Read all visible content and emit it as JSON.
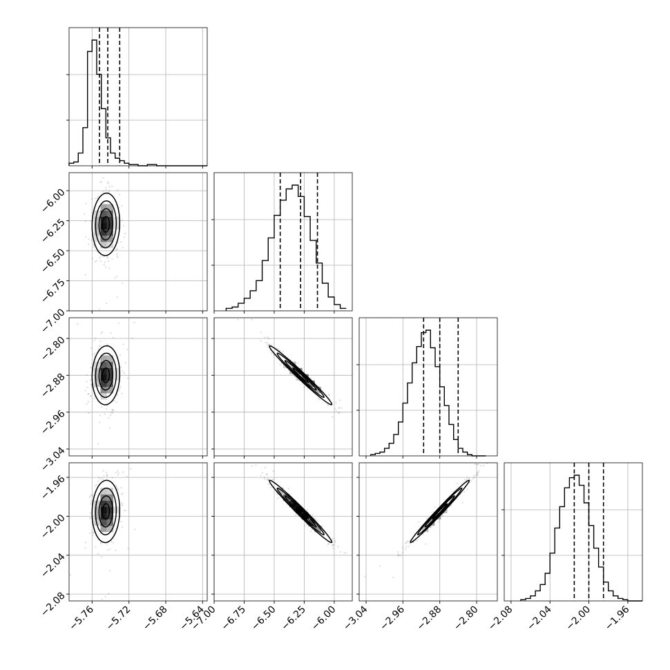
{
  "chart_data": {
    "type": "corner",
    "grid": true,
    "parameters": [
      {
        "range": [
          -5.785,
          -5.635
        ],
        "ticks": [
          -5.76,
          -5.72,
          -5.68,
          -5.64
        ],
        "tick_labels": [
          "−5.76",
          "−5.72",
          "−5.68",
          "−5.64"
        ],
        "quantiles": [
          -5.752,
          -5.743,
          -5.73
        ],
        "histogram": {
          "bin_start": -5.785,
          "bin_width": 0.005,
          "counts": [
            2,
            3,
            10,
            30,
            90,
            99,
            72,
            45,
            22,
            10,
            6,
            4,
            2,
            1,
            1,
            0,
            0,
            1,
            1,
            0,
            0,
            0,
            0,
            0,
            0,
            0,
            0,
            0,
            0,
            0
          ]
        },
        "hist_y_ticks": [
          0.33,
          0.66
        ]
      },
      {
        "range": [
          -7.0,
          -5.85
        ],
        "ticks": [
          -7.0,
          -6.75,
          -6.5,
          -6.25,
          -6.0
        ],
        "tick_labels": [
          "−7.00",
          "−6.75",
          "−6.50",
          "−6.25",
          "−6.00"
        ],
        "quantiles": [
          -6.45,
          -6.28,
          -6.14
        ],
        "histogram": {
          "bin_start": -6.9,
          "bin_width": 0.05,
          "counts": [
            2,
            3,
            6,
            10,
            16,
            24,
            40,
            58,
            76,
            88,
            97,
            100,
            91,
            75,
            56,
            38,
            22,
            11,
            5,
            2
          ]
        },
        "hist_y_ticks": [
          0.33,
          0.66
        ]
      },
      {
        "range": [
          -3.055,
          -2.755
        ],
        "ticks": [
          -3.04,
          -2.96,
          -2.88,
          -2.8
        ],
        "tick_labels": [
          "−3.04",
          "−2.96",
          "−2.88",
          "−2.80"
        ],
        "quantiles": [
          -2.915,
          -2.88,
          -2.84
        ],
        "histogram": {
          "bin_start": -3.03,
          "bin_width": 0.01,
          "counts": [
            1,
            2,
            3,
            6,
            10,
            17,
            27,
            42,
            58,
            74,
            87,
            98,
            100,
            86,
            71,
            55,
            40,
            25,
            13,
            6,
            3,
            1,
            0,
            0,
            0
          ]
        },
        "hist_y_ticks": [
          0.33,
          0.66
        ]
      },
      {
        "range": [
          -2.087,
          -1.945
        ],
        "ticks": [
          -2.08,
          -2.04,
          -2.0,
          -1.96
        ],
        "tick_labels": [
          "−2.08",
          "−2.04",
          "−2.00",
          "−1.96"
        ],
        "quantiles": [
          -2.015,
          -2.0,
          -1.985
        ],
        "histogram": {
          "bin_start": -2.07,
          "bin_width": 0.005,
          "counts": [
            1,
            2,
            4,
            8,
            13,
            22,
            38,
            58,
            75,
            90,
            98,
            100,
            92,
            78,
            60,
            42,
            27,
            15,
            8,
            4,
            2,
            1,
            0,
            0,
            0
          ]
        },
        "hist_y_ticks": [
          0.33,
          0.66
        ]
      }
    ],
    "pairs": [
      {
        "x": 0,
        "y": 1,
        "center": [
          -5.745,
          -6.28
        ],
        "sd": [
          0.0075,
          0.13
        ],
        "rho": 0.05
      },
      {
        "x": 0,
        "y": 2,
        "center": [
          -5.745,
          -2.88
        ],
        "sd": [
          0.0075,
          0.032
        ],
        "rho": 0.05
      },
      {
        "x": 0,
        "y": 3,
        "center": [
          -5.745,
          -1.995
        ],
        "sd": [
          0.0075,
          0.016
        ],
        "rho": 0.05
      },
      {
        "x": 1,
        "y": 2,
        "center": [
          -6.28,
          -2.88
        ],
        "sd": [
          0.13,
          0.032
        ],
        "rho": -0.985
      },
      {
        "x": 1,
        "y": 3,
        "center": [
          -6.28,
          -1.995
        ],
        "sd": [
          0.13,
          0.016
        ],
        "rho": -0.985
      },
      {
        "x": 2,
        "y": 3,
        "center": [
          -2.88,
          -1.995
        ],
        "sd": [
          0.032,
          0.016
        ],
        "rho": 0.99
      }
    ],
    "contour_levels_sigma": [
      0.5,
      1.0,
      1.5,
      2.0
    ]
  }
}
